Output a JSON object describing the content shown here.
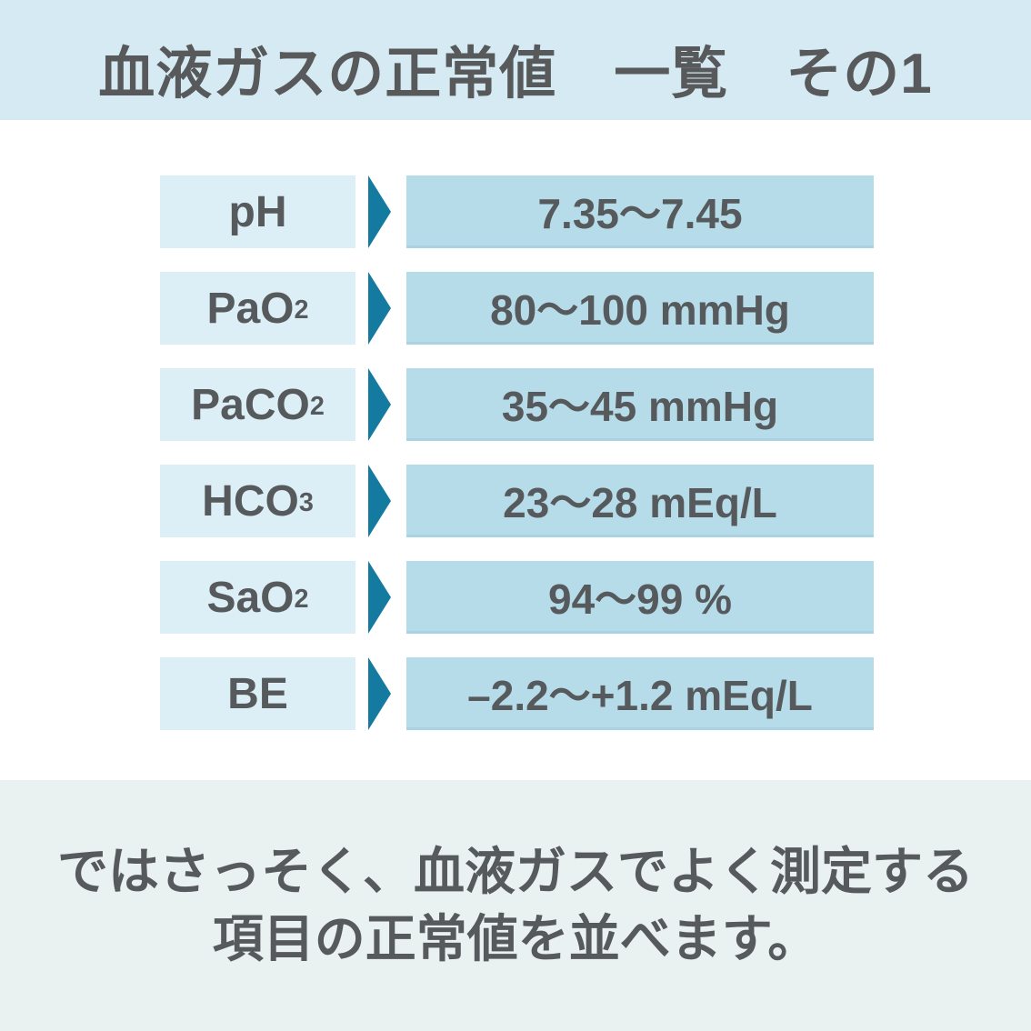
{
  "header": {
    "title": "血液ガスの正常値　一覧　その1"
  },
  "table": {
    "rows": [
      {
        "label": "pH",
        "label_sub": "",
        "value": "7.35〜7.45"
      },
      {
        "label": "PaO",
        "label_sub": "2",
        "value": "80〜100 mmHg"
      },
      {
        "label": "PaCO",
        "label_sub": "2",
        "value": "35〜45 mmHg"
      },
      {
        "label": "HCO",
        "label_sub": "3",
        "value": "23〜28 mEq/L"
      },
      {
        "label": "SaO",
        "label_sub": "2",
        "value": "94〜99 %"
      },
      {
        "label": "BE",
        "label_sub": "",
        "value": "–2.2〜+1.2 mEq/L"
      }
    ]
  },
  "footer": {
    "line1": "ではさっそく、血液ガスでよく測定する",
    "line2": "項目の正常値を並べます。"
  },
  "colors": {
    "header_bg": "#d6eaf3",
    "label_box_bg": "#dceff6",
    "value_box_bg": "#b6dbe9",
    "arrow": "#157a9f",
    "text": "#565a5c",
    "footer_bg": "#eaf1f1",
    "page_bg": "#ffffff"
  }
}
